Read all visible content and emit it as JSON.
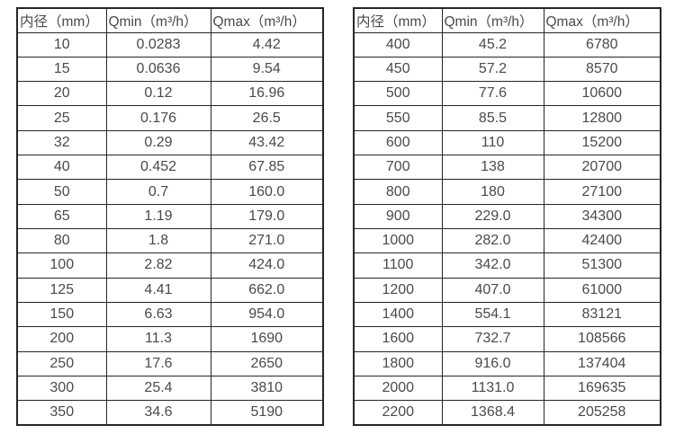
{
  "colors": {
    "background": "#ffffff",
    "border": "#262626",
    "text": "#4a4a4a"
  },
  "tables": [
    {
      "name": "flow-spec-table-small-diameters",
      "headers": [
        "内径（mm）",
        "Qmin（m³/h）",
        "Qmax（m³/h）"
      ],
      "rows": [
        [
          "10",
          "0.0283",
          "4.42"
        ],
        [
          "15",
          "0.0636",
          "9.54"
        ],
        [
          "20",
          "0.12",
          "16.96"
        ],
        [
          "25",
          "0.176",
          "26.5"
        ],
        [
          "32",
          "0.29",
          "43.42"
        ],
        [
          "40",
          "0.452",
          "67.85"
        ],
        [
          "50",
          "0.7",
          "160.0"
        ],
        [
          "65",
          "1.19",
          "179.0"
        ],
        [
          "80",
          "1.8",
          "271.0"
        ],
        [
          "100",
          "2.82",
          "424.0"
        ],
        [
          "125",
          "4.41",
          "662.0"
        ],
        [
          "150",
          "6.63",
          "954.0"
        ],
        [
          "200",
          "11.3",
          "1690"
        ],
        [
          "250",
          "17.6",
          "2650"
        ],
        [
          "300",
          "25.4",
          "3810"
        ],
        [
          "350",
          "34.6",
          "5190"
        ]
      ]
    },
    {
      "name": "flow-spec-table-large-diameters",
      "headers": [
        "内径（mm）",
        "Qmin（m³/h）",
        "Qmax（m³/h）"
      ],
      "rows": [
        [
          "400",
          "45.2",
          "6780"
        ],
        [
          "450",
          "57.2",
          "8570"
        ],
        [
          "500",
          "77.6",
          "10600"
        ],
        [
          "550",
          "85.5",
          "12800"
        ],
        [
          "600",
          "110",
          "15200"
        ],
        [
          "700",
          "138",
          "20700"
        ],
        [
          "800",
          "180",
          "27100"
        ],
        [
          "900",
          "229.0",
          "34300"
        ],
        [
          "1000",
          "282.0",
          "42400"
        ],
        [
          "1100",
          "342.0",
          "51300"
        ],
        [
          "1200",
          "407.0",
          "61000"
        ],
        [
          "1400",
          "554.1",
          "83121"
        ],
        [
          "1600",
          "732.7",
          "108566"
        ],
        [
          "1800",
          "916.0",
          "137404"
        ],
        [
          "2000",
          "1131.0",
          "169635"
        ],
        [
          "2200",
          "1368.4",
          "205258"
        ]
      ]
    }
  ]
}
